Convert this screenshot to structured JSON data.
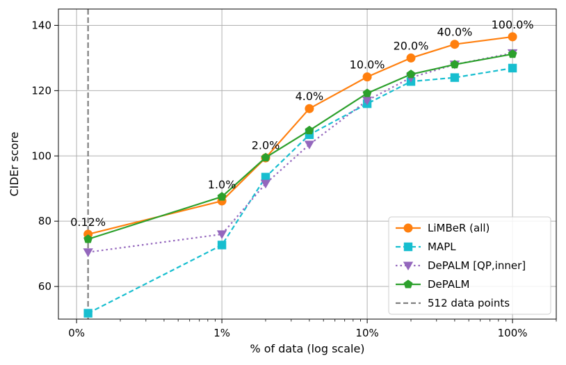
{
  "chart_data": {
    "type": "line",
    "xlabel": "% of data (log scale)",
    "ylabel": "CIDEr score",
    "x_scale": "log",
    "xlim_percent": [
      0.075,
      200
    ],
    "ylim": [
      50,
      145
    ],
    "grid": true,
    "legend_position": "bottom-right",
    "x_ticks": [
      {
        "value": 0.1,
        "label": "0%"
      },
      {
        "value": 1,
        "label": "1%"
      },
      {
        "value": 10,
        "label": "10%"
      },
      {
        "value": 100,
        "label": "100%"
      }
    ],
    "y_ticks": [
      60,
      80,
      100,
      120,
      140
    ],
    "x": [
      0.12,
      1,
      2,
      4,
      10,
      20,
      40,
      100
    ],
    "point_labels": [
      "0.12%",
      "1.0%",
      "2.0%",
      "4.0%",
      "10.0%",
      "20.0%",
      "40.0%",
      "100.0%"
    ],
    "series": [
      {
        "name": "LiMBeR (all)",
        "color": "#ff7f0e",
        "marker": "circle",
        "line": "solid",
        "values": [
          76,
          86.2,
          99.4,
          114.5,
          124.2,
          130,
          134.2,
          136.5
        ]
      },
      {
        "name": "MAPL",
        "color": "#17becf",
        "marker": "square",
        "line": "dashed",
        "values": [
          51.8,
          72.7,
          93.5,
          106.5,
          116,
          122.8,
          124,
          126.9
        ]
      },
      {
        "name": "DePALM [QP,inner]",
        "color": "#9467bd",
        "marker": "triangle-down",
        "line": "dotted",
        "values": [
          70.5,
          76,
          91.5,
          103.5,
          117,
          124,
          128,
          131.5
        ]
      },
      {
        "name": "DePALM",
        "color": "#2ca02c",
        "marker": "pentagon",
        "line": "solid",
        "values": [
          74.5,
          87.5,
          99.5,
          107.8,
          119.2,
          125,
          128,
          131.2
        ]
      }
    ],
    "vline": {
      "x": 0.12,
      "name": "512 data points",
      "color": "#7f7f7f",
      "line": "dashed"
    }
  }
}
